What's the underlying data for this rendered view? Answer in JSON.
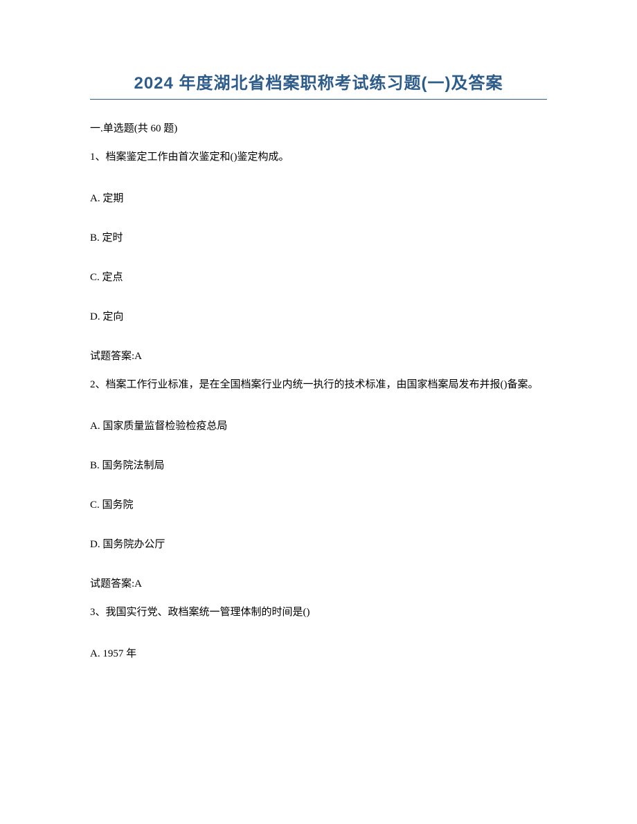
{
  "title": "2024 年度湖北省档案职称考试练习题(一)及答案",
  "section_header": "一.单选题(共 60 题)",
  "questions": [
    {
      "text": "1、档案鉴定工作由首次鉴定和()鉴定构成。",
      "options": {
        "a": "A. 定期",
        "b": "B. 定时",
        "c": "C. 定点",
        "d": "D. 定向"
      },
      "answer": "试题答案:A"
    },
    {
      "text": "2、档案工作行业标准，是在全国档案行业内统一执行的技术标准，由国家档案局发布并报()备案。",
      "options": {
        "a": "A. 国家质量监督检验检疫总局",
        "b": "B. 国务院法制局",
        "c": "C. 国务院",
        "d": "D. 国务院办公厅"
      },
      "answer": "试题答案:A"
    },
    {
      "text": "3、我国实行党、政档案统一管理体制的时间是()",
      "options": {
        "a": "A. 1957 年"
      }
    }
  ]
}
